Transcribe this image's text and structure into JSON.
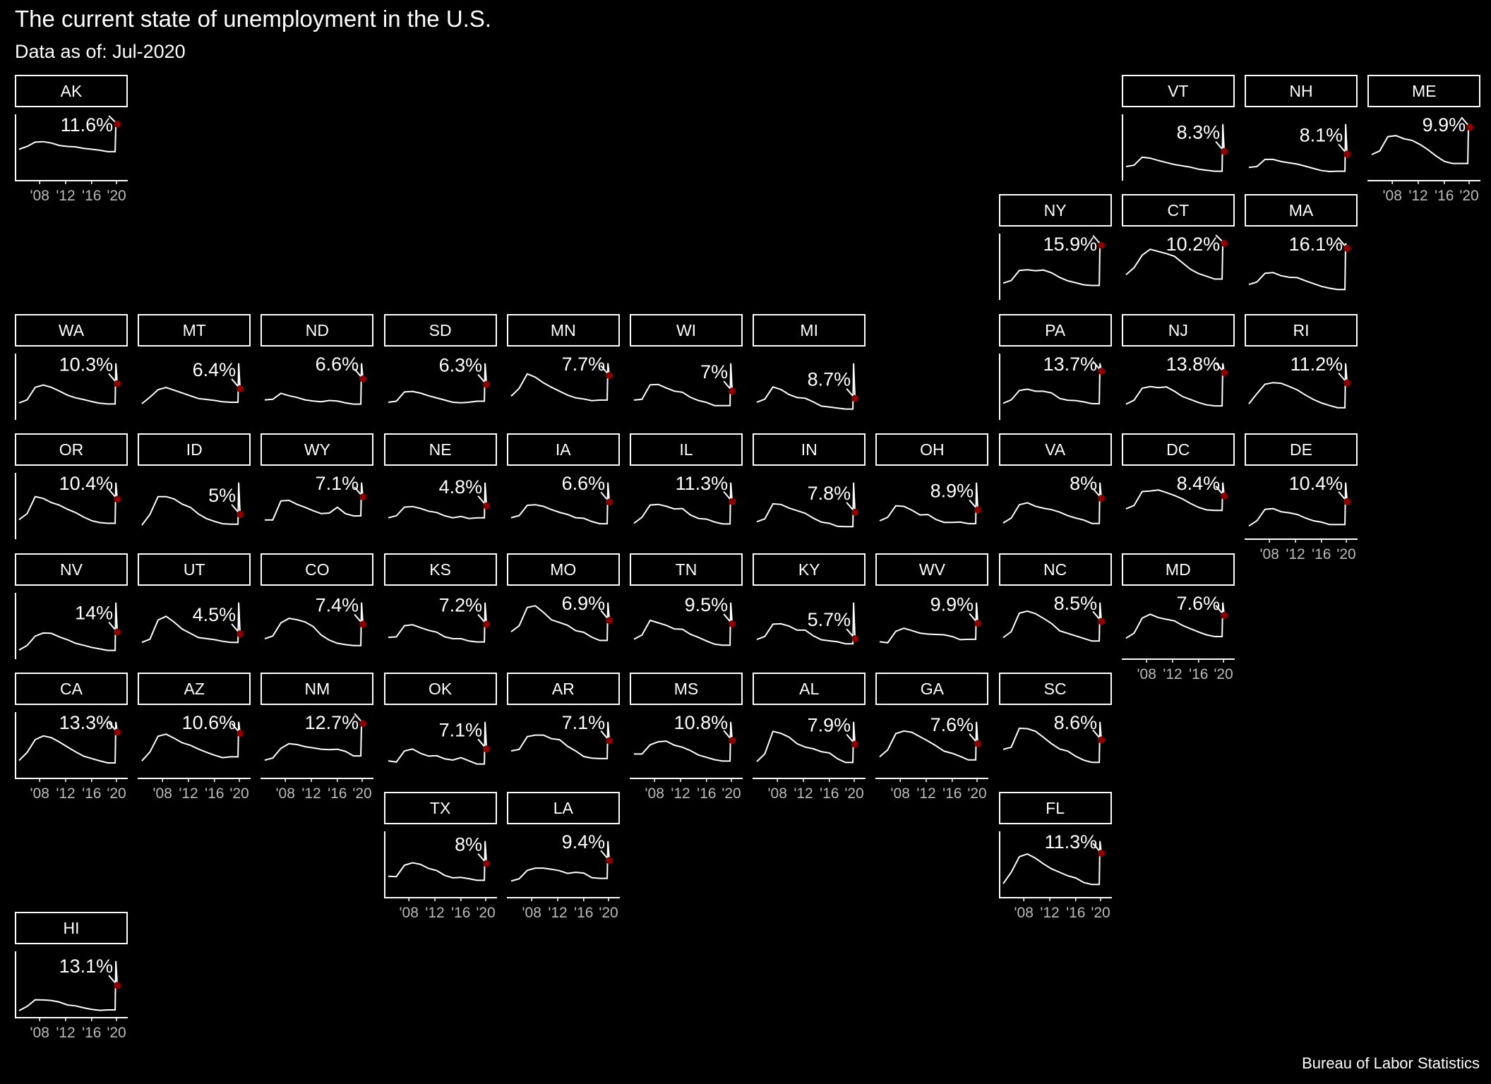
{
  "title": "The current state of unemployment in the U.S.",
  "subtitle": "Data as of: Jul-2020",
  "source": "Bureau of Labor Statistics",
  "colors": {
    "background": "#000000",
    "line": "#ffffff",
    "point": "#8b0000",
    "tick_label": "#bbbbbb"
  },
  "chart_data": {
    "type": "line",
    "layout": "tile grid map (small multiples)",
    "x_tick_labels": [
      "'08",
      "'12",
      "'16",
      "'20"
    ],
    "x_range": [
      "2006",
      "2020"
    ],
    "y_axis": "free scale per panel",
    "states": [
      {
        "state": "AK",
        "col": 0,
        "row": 0,
        "latest": 11.6,
        "label": "11.6%",
        "baseline": [
          6.3,
          6.9,
          7.8,
          7.9,
          7.6,
          7.1,
          6.9,
          6.8,
          6.5,
          6.3,
          6.1,
          5.8
        ],
        "peak": 11.6
      },
      {
        "state": "VT",
        "col": 9,
        "row": 0,
        "latest": 8.3,
        "label": "8.3%",
        "baseline": [
          3.8,
          4.2,
          6.6,
          6.3,
          5.6,
          5.0,
          4.4,
          4.0,
          3.6,
          3.0,
          2.7,
          2.4
        ],
        "peak": 16.5
      },
      {
        "state": "NH",
        "col": 10,
        "row": 0,
        "latest": 8.1,
        "label": "8.1%",
        "baseline": [
          3.8,
          4.1,
          6.4,
          6.4,
          5.7,
          5.3,
          4.9,
          4.2,
          3.5,
          2.8,
          2.5,
          2.6
        ],
        "peak": 17.8
      },
      {
        "state": "ME",
        "col": 11,
        "row": 0,
        "latest": 9.9,
        "label": "9.9%",
        "baseline": [
          4.7,
          5.4,
          8.1,
          8.3,
          7.7,
          7.4,
          6.6,
          5.6,
          4.4,
          3.4,
          3.0,
          3.0
        ],
        "peak": 10.5
      },
      {
        "state": "NY",
        "col": 8,
        "row": 1,
        "latest": 15.9,
        "label": "15.9%",
        "baseline": [
          4.6,
          5.4,
          8.4,
          8.6,
          8.3,
          8.5,
          7.7,
          6.3,
          5.3,
          4.7,
          4.1,
          3.9
        ],
        "peak": 16.5
      },
      {
        "state": "CT",
        "col": 9,
        "row": 1,
        "latest": 10.2,
        "label": "10.2%",
        "baseline": [
          4.4,
          5.7,
          8.0,
          9.1,
          8.7,
          8.3,
          7.8,
          6.6,
          5.4,
          4.6,
          4.1,
          3.6
        ],
        "peak": 10.2
      },
      {
        "state": "MA",
        "col": 10,
        "row": 1,
        "latest": 16.1,
        "label": "16.1%",
        "baseline": [
          4.5,
          5.3,
          8.1,
          8.3,
          7.3,
          6.8,
          6.7,
          5.7,
          4.8,
          3.9,
          3.3,
          2.9
        ],
        "peak": 17.7
      },
      {
        "state": "WA",
        "col": 0,
        "row": 2,
        "latest": 10.3,
        "label": "10.3%",
        "baseline": [
          4.6,
          5.5,
          9.2,
          9.9,
          9.2,
          8.1,
          6.9,
          6.1,
          5.6,
          5.0,
          4.5,
          4.3
        ],
        "peak": 16.3
      },
      {
        "state": "MT",
        "col": 1,
        "row": 2,
        "latest": 6.4,
        "label": "6.4%",
        "baseline": [
          3.2,
          4.6,
          6.2,
          6.7,
          6.1,
          5.5,
          4.9,
          4.3,
          4.1,
          3.9,
          3.6,
          3.5
        ],
        "peak": 11.9
      },
      {
        "state": "ND",
        "col": 2,
        "row": 2,
        "latest": 6.6,
        "label": "6.6%",
        "baseline": [
          3.1,
          3.2,
          4.2,
          3.8,
          3.5,
          3.1,
          2.9,
          2.8,
          3.0,
          2.9,
          2.6,
          2.4
        ],
        "peak": 9.2
      },
      {
        "state": "SD",
        "col": 3,
        "row": 2,
        "latest": 6.3,
        "label": "6.3%",
        "baseline": [
          3.0,
          3.2,
          4.9,
          5.0,
          4.7,
          4.2,
          3.8,
          3.4,
          3.0,
          2.9,
          3.0,
          3.2
        ],
        "peak": 10.2
      },
      {
        "state": "MN",
        "col": 4,
        "row": 2,
        "latest": 7.7,
        "label": "7.7%",
        "baseline": [
          4.0,
          5.4,
          8.0,
          7.4,
          6.4,
          5.6,
          4.9,
          4.2,
          3.7,
          3.5,
          3.2,
          3.3
        ],
        "peak": 9.9
      },
      {
        "state": "WI",
        "col": 5,
        "row": 2,
        "latest": 7.0,
        "label": "7%",
        "baseline": [
          4.7,
          4.9,
          8.6,
          8.7,
          7.8,
          7.0,
          6.7,
          5.4,
          4.6,
          4.1,
          3.3,
          3.3
        ],
        "peak": 14.1
      },
      {
        "state": "MI",
        "col": 6,
        "row": 2,
        "latest": 8.7,
        "label": "8.7%",
        "baseline": [
          7.1,
          8.4,
          13.7,
          12.6,
          10.4,
          9.1,
          8.8,
          7.2,
          5.4,
          5.0,
          4.5,
          4.1
        ],
        "peak": 24.0
      },
      {
        "state": "PA",
        "col": 8,
        "row": 2,
        "latest": 13.7,
        "label": "13.7%",
        "baseline": [
          4.4,
          5.4,
          8.1,
          8.5,
          7.9,
          7.9,
          7.4,
          5.8,
          5.3,
          5.2,
          4.8,
          4.3
        ],
        "peak": 16.0
      },
      {
        "state": "NJ",
        "col": 9,
        "row": 2,
        "latest": 13.8,
        "label": "13.8%",
        "baseline": [
          4.3,
          5.5,
          9.1,
          9.6,
          9.3,
          9.5,
          8.2,
          6.6,
          5.7,
          4.8,
          4.1,
          3.8
        ],
        "peak": 16.6
      },
      {
        "state": "RI",
        "col": 10,
        "row": 2,
        "latest": 11.2,
        "label": "11.2%",
        "baseline": [
          4.6,
          7.8,
          10.8,
          11.3,
          11.1,
          10.1,
          9.0,
          7.4,
          6.0,
          4.9,
          4.1,
          3.4
        ],
        "peak": 17.4
      },
      {
        "state": "OR",
        "col": 0,
        "row": 3,
        "latest": 10.4,
        "label": "10.4%",
        "baseline": [
          4.9,
          6.5,
          11.1,
          10.6,
          9.5,
          8.8,
          7.7,
          6.8,
          5.6,
          4.6,
          4.1,
          3.9
        ],
        "peak": 14.9
      },
      {
        "state": "ID",
        "col": 1,
        "row": 3,
        "latest": 5.0,
        "label": "5%",
        "baseline": [
          2.7,
          5.0,
          8.8,
          8.8,
          8.3,
          7.2,
          6.5,
          5.1,
          4.1,
          3.5,
          3.0,
          2.9
        ],
        "peak": 11.8
      },
      {
        "state": "WY",
        "col": 2,
        "row": 3,
        "latest": 7.1,
        "label": "7.1%",
        "baseline": [
          3.1,
          3.1,
          6.4,
          6.5,
          5.8,
          5.3,
          4.7,
          4.2,
          4.3,
          5.3,
          4.2,
          3.8
        ],
        "peak": 9.6
      },
      {
        "state": "NE",
        "col": 3,
        "row": 3,
        "latest": 4.8,
        "label": "4.8%",
        "baseline": [
          3.0,
          3.3,
          4.6,
          4.7,
          4.4,
          4.0,
          3.8,
          3.3,
          3.0,
          3.2,
          2.9,
          3.0
        ],
        "peak": 8.3
      },
      {
        "state": "IA",
        "col": 4,
        "row": 3,
        "latest": 6.6,
        "label": "6.6%",
        "baseline": [
          3.7,
          4.1,
          6.0,
          6.1,
          5.8,
          5.2,
          4.7,
          4.3,
          3.7,
          3.6,
          3.0,
          2.6
        ],
        "peak": 10.2
      },
      {
        "state": "IL",
        "col": 5,
        "row": 3,
        "latest": 11.3,
        "label": "11.3%",
        "baseline": [
          4.5,
          6.4,
          10.2,
          10.4,
          9.8,
          9.0,
          9.1,
          7.1,
          6.0,
          5.8,
          4.9,
          4.3
        ],
        "peak": 17.2
      },
      {
        "state": "IN",
        "col": 6,
        "row": 3,
        "latest": 7.8,
        "label": "7.8%",
        "baseline": [
          4.9,
          5.8,
          10.4,
          10.2,
          9.1,
          8.3,
          7.5,
          6.0,
          4.8,
          4.4,
          3.5,
          3.4
        ],
        "peak": 16.9
      },
      {
        "state": "OH",
        "col": 7,
        "row": 3,
        "latest": 8.9,
        "label": "8.9%",
        "baseline": [
          5.4,
          6.5,
          10.2,
          10.0,
          8.8,
          7.3,
          7.4,
          5.8,
          4.9,
          4.9,
          5.0,
          4.5
        ],
        "peak": 17.6
      },
      {
        "state": "VA",
        "col": 8,
        "row": 3,
        "latest": 8.0,
        "label": "8%",
        "baseline": [
          3.0,
          4.0,
          6.7,
          7.1,
          6.4,
          6.0,
          5.7,
          5.2,
          4.5,
          4.0,
          3.6,
          2.9
        ],
        "peak": 11.2
      },
      {
        "state": "DC",
        "col": 9,
        "row": 3,
        "latest": 8.4,
        "label": "8.4%",
        "baseline": [
          5.8,
          6.5,
          9.3,
          9.4,
          9.6,
          9.1,
          8.5,
          7.8,
          6.9,
          6.1,
          5.6,
          5.5
        ],
        "peak": 11.1
      },
      {
        "state": "DE",
        "col": 10,
        "row": 3,
        "latest": 10.4,
        "label": "10.4%",
        "baseline": [
          3.4,
          4.9,
          8.2,
          8.4,
          7.5,
          7.2,
          6.7,
          5.7,
          4.9,
          4.5,
          3.8,
          3.8
        ],
        "peak": 15.9
      },
      {
        "state": "NV",
        "col": 0,
        "row": 4,
        "latest": 14.0,
        "label": "14%",
        "baseline": [
          4.2,
          6.7,
          11.8,
          13.5,
          13.3,
          11.4,
          9.8,
          7.9,
          6.8,
          5.6,
          4.8,
          4.0
        ],
        "peak": 30.1
      },
      {
        "state": "UT",
        "col": 1,
        "row": 4,
        "latest": 4.5,
        "label": "4.5%",
        "baseline": [
          2.9,
          3.5,
          7.1,
          7.8,
          6.7,
          5.4,
          4.6,
          3.8,
          3.6,
          3.4,
          3.1,
          2.9
        ],
        "peak": 10.4
      },
      {
        "state": "CO",
        "col": 2,
        "row": 4,
        "latest": 7.4,
        "label": "7.4%",
        "baseline": [
          4.2,
          4.8,
          7.7,
          8.7,
          8.4,
          7.9,
          6.9,
          5.0,
          3.9,
          3.2,
          2.9,
          2.7
        ],
        "peak": 12.2
      },
      {
        "state": "KS",
        "col": 3,
        "row": 4,
        "latest": 7.2,
        "label": "7.2%",
        "baseline": [
          4.4,
          4.5,
          6.9,
          7.1,
          6.5,
          5.9,
          5.5,
          4.5,
          4.1,
          4.1,
          3.6,
          3.4
        ],
        "peak": 11.9
      },
      {
        "state": "MO",
        "col": 4,
        "row": 4,
        "latest": 6.9,
        "label": "6.9%",
        "baseline": [
          4.8,
          5.9,
          9.3,
          9.6,
          8.4,
          7.0,
          6.5,
          6.0,
          5.0,
          4.7,
          3.8,
          3.2
        ],
        "peak": 10.2
      },
      {
        "state": "TN",
        "col": 5,
        "row": 4,
        "latest": 9.5,
        "label": "9.5%",
        "baseline": [
          5.2,
          6.4,
          10.5,
          9.8,
          9.1,
          8.1,
          8.0,
          6.6,
          5.7,
          4.7,
          3.8,
          3.5
        ],
        "peak": 15.5
      },
      {
        "state": "KY",
        "col": 6,
        "row": 4,
        "latest": 5.7,
        "label": "5.7%",
        "baseline": [
          5.5,
          6.4,
          10.1,
          10.2,
          9.5,
          8.3,
          8.3,
          6.6,
          5.4,
          5.1,
          4.8,
          4.2
        ],
        "peak": 16.6
      },
      {
        "state": "WV",
        "col": 7,
        "row": 4,
        "latest": 9.9,
        "label": "9.9%",
        "baseline": [
          4.6,
          4.3,
          7.6,
          8.5,
          7.8,
          7.1,
          6.8,
          6.7,
          6.6,
          6.1,
          5.2,
          5.3
        ],
        "peak": 15.9
      },
      {
        "state": "NC",
        "col": 8,
        "row": 4,
        "latest": 8.5,
        "label": "8.5%",
        "baseline": [
          4.7,
          6.1,
          10.4,
          10.9,
          10.3,
          9.2,
          8.0,
          6.3,
          5.7,
          5.1,
          4.5,
          3.9
        ],
        "peak": 12.9
      },
      {
        "state": "MD",
        "col": 9,
        "row": 4,
        "latest": 7.6,
        "label": "7.6%",
        "baseline": [
          3.5,
          4.4,
          7.1,
          7.8,
          7.2,
          6.9,
          6.6,
          5.8,
          5.2,
          4.6,
          4.1,
          3.8
        ],
        "peak": 9.9
      },
      {
        "state": "CA",
        "col": 0,
        "row": 5,
        "latest": 13.3,
        "label": "13.3%",
        "baseline": [
          4.9,
          7.3,
          11.1,
          12.2,
          11.7,
          10.4,
          8.9,
          7.5,
          6.2,
          5.5,
          4.8,
          4.2
        ],
        "peak": 16.4
      },
      {
        "state": "AZ",
        "col": 1,
        "row": 5,
        "latest": 10.6,
        "label": "10.6%",
        "baseline": [
          3.9,
          6.1,
          9.9,
          10.4,
          9.4,
          8.3,
          7.7,
          6.8,
          6.0,
          5.3,
          4.7,
          4.9
        ],
        "peak": 13.4
      },
      {
        "state": "NM",
        "col": 2,
        "row": 5,
        "latest": 12.7,
        "label": "12.7%",
        "baseline": [
          4.0,
          4.5,
          6.8,
          7.9,
          7.7,
          7.2,
          6.9,
          6.6,
          6.5,
          6.6,
          6.1,
          5.0
        ],
        "peak": 13.1
      },
      {
        "state": "OK",
        "col": 3,
        "row": 5,
        "latest": 7.1,
        "label": "7.1%",
        "baseline": [
          4.1,
          3.8,
          6.6,
          7.1,
          6.0,
          5.3,
          5.4,
          4.6,
          4.3,
          4.9,
          4.1,
          3.3
        ],
        "peak": 14.0
      },
      {
        "state": "AR",
        "col": 4,
        "row": 5,
        "latest": 7.1,
        "label": "7.1%",
        "baseline": [
          5.1,
          5.4,
          7.9,
          8.2,
          8.2,
          7.5,
          7.3,
          6.0,
          5.1,
          4.0,
          3.7,
          3.6
        ],
        "peak": 10.8
      },
      {
        "state": "MS",
        "col": 5,
        "row": 5,
        "latest": 10.8,
        "label": "10.8%",
        "baseline": [
          6.8,
          6.8,
          9.5,
          10.4,
          10.6,
          9.4,
          8.8,
          7.8,
          6.5,
          5.8,
          5.1,
          4.7
        ],
        "peak": 16.3
      },
      {
        "state": "AL",
        "col": 6,
        "row": 5,
        "latest": 7.9,
        "label": "7.9%",
        "baseline": [
          3.7,
          5.6,
          11.0,
          10.5,
          9.6,
          8.0,
          7.2,
          6.8,
          6.1,
          5.8,
          4.4,
          3.5
        ],
        "peak": 13.3
      },
      {
        "state": "GA",
        "col": 7,
        "row": 5,
        "latest": 7.6,
        "label": "7.6%",
        "baseline": [
          4.6,
          6.2,
          9.9,
          10.5,
          10.2,
          9.2,
          8.2,
          7.1,
          5.9,
          5.4,
          4.7,
          3.9
        ],
        "peak": 12.6
      },
      {
        "state": "SC",
        "col": 8,
        "row": 5,
        "latest": 8.6,
        "label": "8.6%",
        "baseline": [
          6.4,
          6.9,
          11.3,
          11.2,
          10.6,
          9.2,
          7.7,
          6.5,
          6.0,
          4.8,
          3.9,
          3.4
        ],
        "peak": 12.8
      },
      {
        "state": "TX",
        "col": 3,
        "row": 6,
        "latest": 8.0,
        "label": "8%",
        "baseline": [
          4.9,
          4.8,
          7.6,
          8.2,
          7.8,
          6.8,
          6.3,
          5.1,
          4.5,
          4.6,
          4.3,
          3.9
        ],
        "peak": 13.5
      },
      {
        "state": "LA",
        "col": 4,
        "row": 6,
        "latest": 9.4,
        "label": "9.4%",
        "baseline": [
          4.0,
          4.6,
          6.8,
          7.4,
          7.4,
          7.1,
          6.7,
          6.0,
          6.3,
          6.1,
          4.9,
          4.7
        ],
        "peak": 14.5
      },
      {
        "state": "FL",
        "col": 8,
        "row": 6,
        "latest": 11.3,
        "label": "11.3%",
        "baseline": [
          3.3,
          6.3,
          10.4,
          11.1,
          10.0,
          8.5,
          7.2,
          6.3,
          5.4,
          4.8,
          3.6,
          3.1
        ],
        "peak": 14.5
      },
      {
        "state": "HI",
        "col": 0,
        "row": 7,
        "latest": 13.1,
        "label": "13.1%",
        "baseline": [
          2.4,
          4.2,
          7.0,
          6.9,
          6.7,
          6.0,
          4.8,
          4.4,
          3.6,
          2.9,
          2.5,
          2.7
        ],
        "peak": 23.4
      }
    ]
  }
}
